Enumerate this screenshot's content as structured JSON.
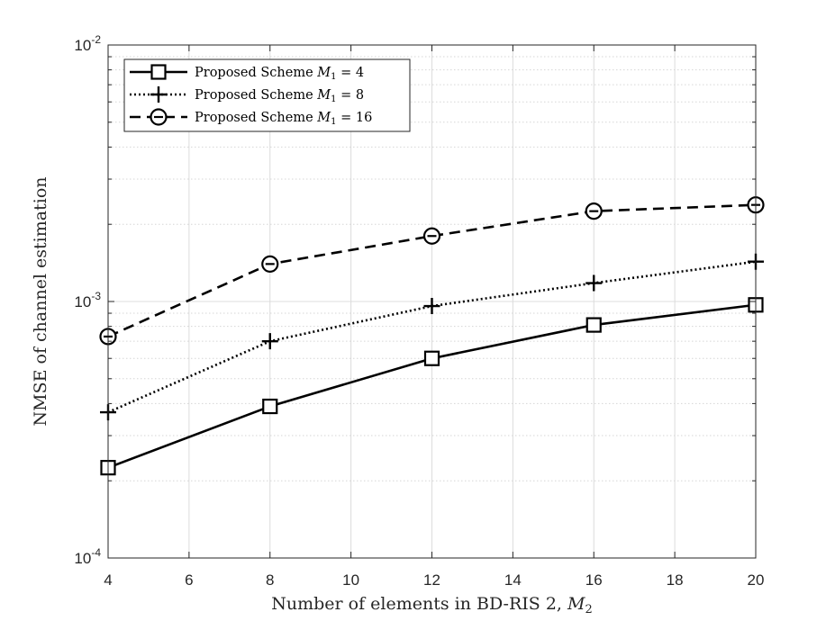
{
  "chart_data": {
    "type": "line",
    "title": "",
    "xlabel": "Number of elements in BD-RIS 2, ",
    "xlabel_var": "M",
    "xlabel_sub": "2",
    "ylabel": "NMSE of channel estimation",
    "x": [
      4,
      8,
      12,
      16,
      20
    ],
    "xlim": [
      4,
      20
    ],
    "ylim": [
      0.0001,
      0.01
    ],
    "yscale": "log",
    "grid": "on, major and minor",
    "legend_position": "top-left",
    "x_ticks": [
      "4",
      "6",
      "8",
      "10",
      "12",
      "14",
      "16",
      "18",
      "20"
    ],
    "y_ticks": [
      {
        "base": "10",
        "exp": "-4"
      },
      {
        "base": "10",
        "exp": "-3"
      },
      {
        "base": "10",
        "exp": "-2"
      }
    ],
    "series": [
      {
        "name_prefix": "Proposed Scheme ",
        "name_var": "M",
        "name_sub": "1",
        "name_suffix": " = 4",
        "marker": "square",
        "line": "solid",
        "color": "#000000",
        "values": [
          0.000225,
          0.00039,
          0.0006,
          0.00081,
          0.00097
        ]
      },
      {
        "name_prefix": "Proposed Scheme ",
        "name_var": "M",
        "name_sub": "1",
        "name_suffix": " = 8",
        "marker": "plus",
        "line": "dotted",
        "color": "#000000",
        "values": [
          0.00037,
          0.0007,
          0.00096,
          0.00118,
          0.00143
        ]
      },
      {
        "name_prefix": "Proposed Scheme ",
        "name_var": "M",
        "name_sub": "1",
        "name_suffix": " = 16",
        "marker": "circle-minus",
        "line": "dashed",
        "color": "#000000",
        "values": [
          0.00073,
          0.0014,
          0.0018,
          0.00225,
          0.00238
        ]
      }
    ]
  }
}
